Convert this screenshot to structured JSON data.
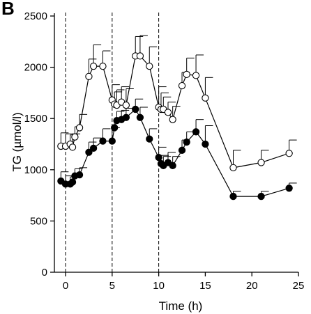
{
  "panel_label": "B",
  "chart_data": {
    "type": "line",
    "xlabel": "Time (h)",
    "ylabel": "TG (µmol/l)",
    "xlim": [
      -1.2,
      25
    ],
    "ylim": [
      0,
      2500
    ],
    "xticks": [
      0,
      5,
      10,
      15,
      20,
      25
    ],
    "yticks": [
      0,
      500,
      1000,
      1500,
      2000,
      2500
    ],
    "vlines": [
      0,
      5,
      10
    ],
    "grid": false,
    "series": [
      {
        "marker": "open-circle",
        "color": "#000000",
        "points": [
          {
            "x": -0.5,
            "y": 1230,
            "err": 130
          },
          {
            "x": 0,
            "y": 1230,
            "err": 120
          },
          {
            "x": 0.5,
            "y": 1250,
            "err": 90
          },
          {
            "x": 0.75,
            "y": 1220,
            "err": 130
          },
          {
            "x": 1,
            "y": 1320,
            "err": 100
          },
          {
            "x": 1.5,
            "y": 1410,
            "err": 130
          },
          {
            "x": 2.5,
            "y": 1910,
            "err": 170
          },
          {
            "x": 3,
            "y": 2010,
            "err": 210
          },
          {
            "x": 4,
            "y": 2010,
            "err": 150
          },
          {
            "x": 5,
            "y": 1680,
            "err": 150
          },
          {
            "x": 5.25,
            "y": 1640,
            "err": 120
          },
          {
            "x": 5.5,
            "y": 1630,
            "err": 150
          },
          {
            "x": 6,
            "y": 1660,
            "err": 150
          },
          {
            "x": 6.5,
            "y": 1630,
            "err": 160
          },
          {
            "x": 7.5,
            "y": 2110,
            "err": 190
          },
          {
            "x": 8,
            "y": 2110,
            "err": 200
          },
          {
            "x": 9,
            "y": 2010,
            "err": 190
          },
          {
            "x": 10,
            "y": 1610,
            "err": 200
          },
          {
            "x": 10.25,
            "y": 1590,
            "err": 160
          },
          {
            "x": 10.5,
            "y": 1590,
            "err": 120
          },
          {
            "x": 11,
            "y": 1560,
            "err": 100
          },
          {
            "x": 11.5,
            "y": 1490,
            "err": 130
          },
          {
            "x": 12.5,
            "y": 1820,
            "err": 130
          },
          {
            "x": 13,
            "y": 1930,
            "err": 160
          },
          {
            "x": 14,
            "y": 1920,
            "err": 200
          },
          {
            "x": 15,
            "y": 1700,
            "err": 200
          },
          {
            "x": 18,
            "y": 1020,
            "err": 170
          },
          {
            "x": 21,
            "y": 1070,
            "err": 120
          },
          {
            "x": 24,
            "y": 1160,
            "err": 130
          }
        ]
      },
      {
        "marker": "filled-circle",
        "color": "#000000",
        "points": [
          {
            "x": -0.5,
            "y": 890,
            "err": 90
          },
          {
            "x": 0,
            "y": 860,
            "err": 80
          },
          {
            "x": 0.5,
            "y": 860,
            "err": 70
          },
          {
            "x": 0.75,
            "y": 880,
            "err": 60
          },
          {
            "x": 1,
            "y": 940,
            "err": 70
          },
          {
            "x": 1.5,
            "y": 950,
            "err": 70
          },
          {
            "x": 2.5,
            "y": 1170,
            "err": 100
          },
          {
            "x": 3,
            "y": 1210,
            "err": 100
          },
          {
            "x": 4,
            "y": 1280,
            "err": 120
          },
          {
            "x": 5,
            "y": 1280,
            "err": 130
          },
          {
            "x": 5.25,
            "y": 1410,
            "err": 90
          },
          {
            "x": 5.5,
            "y": 1480,
            "err": 90
          },
          {
            "x": 6,
            "y": 1490,
            "err": 90
          },
          {
            "x": 6.5,
            "y": 1510,
            "err": 90
          },
          {
            "x": 7.5,
            "y": 1590,
            "err": 100
          },
          {
            "x": 8,
            "y": 1510,
            "err": 100
          },
          {
            "x": 9,
            "y": 1300,
            "err": 100
          },
          {
            "x": 10,
            "y": 1120,
            "err": 100
          },
          {
            "x": 10.25,
            "y": 1060,
            "err": 80
          },
          {
            "x": 10.5,
            "y": 1040,
            "err": 90
          },
          {
            "x": 11,
            "y": 1070,
            "err": 100
          },
          {
            "x": 11.5,
            "y": 1040,
            "err": 90
          },
          {
            "x": 12.5,
            "y": 1190,
            "err": 100
          },
          {
            "x": 13,
            "y": 1270,
            "err": 100
          },
          {
            "x": 14,
            "y": 1370,
            "err": 120
          },
          {
            "x": 15,
            "y": 1250,
            "err": 180
          },
          {
            "x": 18,
            "y": 740,
            "err": 50
          },
          {
            "x": 21,
            "y": 740,
            "err": 50
          },
          {
            "x": 24,
            "y": 820,
            "err": 50
          }
        ]
      }
    ]
  }
}
